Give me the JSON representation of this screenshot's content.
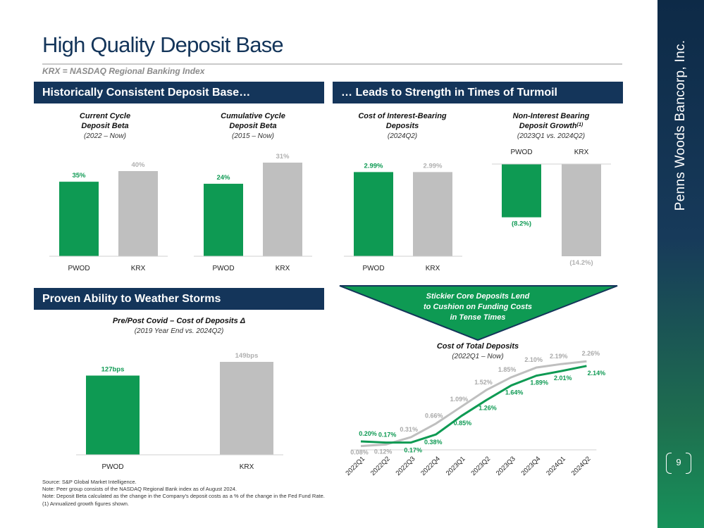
{
  "page": {
    "title": "High Quality Deposit Base",
    "subtitle": "KRX = NASDAQ Regional Banking Index",
    "company": "Penns Woods Bancorp, Inc.",
    "page_number": "9"
  },
  "sections": {
    "left_top": "Historically Consistent Deposit Base…",
    "right_top": "… Leads to Strength in Times of Turmoil",
    "left_bottom": "Proven Ability to Weather Storms"
  },
  "callout": {
    "line1": "Stickier Core Deposits Lend",
    "line2": "to Cushion on Funding Costs",
    "line3": "in Tense Times"
  },
  "notes": [
    "Source: S&P Global Market Intelligence.",
    "Note: Peer group consists of the NASDAQ Regional Bank index as of August 2024.",
    "Note: Deposit Beta calculated as the change in the Company's deposit costs as a % of the change in the Fed Fund Rate.",
    "(1) Annualized growth figures shown."
  ],
  "colors": {
    "pwod": "#0e9a53",
    "krx": "#bfbfbf",
    "navy": "#14355a"
  },
  "chart_data": [
    {
      "type": "bar",
      "title": "Current Cycle",
      "title2": "Deposit Beta",
      "subtitle": "(2022 – Now)",
      "categories": [
        "PWOD",
        "KRX"
      ],
      "values": [
        35,
        40
      ],
      "labels": [
        "35%",
        "40%"
      ],
      "ylim": [
        0,
        40
      ]
    },
    {
      "type": "bar",
      "title": "Cumulative Cycle",
      "title2": "Deposit Beta",
      "subtitle": "(2015 – Now)",
      "categories": [
        "PWOD",
        "KRX"
      ],
      "values": [
        24,
        31
      ],
      "labels": [
        "24%",
        "31%"
      ],
      "ylim": [
        0,
        31
      ]
    },
    {
      "type": "bar",
      "title": "Cost of Interest-Bearing",
      "title2": "Deposits",
      "subtitle": "(2024Q2)",
      "categories": [
        "PWOD",
        "KRX"
      ],
      "values": [
        2.99,
        2.99
      ],
      "labels": [
        "2.99%",
        "2.99%"
      ],
      "ylim": [
        0,
        3.1
      ]
    },
    {
      "type": "bar",
      "title": "Non-Interest Bearing",
      "title2": "Deposit Growth",
      "title2_sup": "(1)",
      "subtitle": "(2023Q1 vs. 2024Q2)",
      "categories": [
        "PWOD",
        "KRX"
      ],
      "values": [
        -8.2,
        -14.2
      ],
      "labels": [
        "(8.2%)",
        "(14.2%)"
      ],
      "ylim": [
        -14.2,
        0
      ]
    },
    {
      "type": "bar",
      "title": "Pre/Post Covid – Cost of Deposits Δ",
      "subtitle": "(2019 Year End vs. 2024Q2)",
      "categories": [
        "PWOD",
        "KRX"
      ],
      "values": [
        127,
        149
      ],
      "labels": [
        "127bps",
        "149bps"
      ],
      "ylim": [
        0,
        149
      ]
    },
    {
      "type": "line",
      "title": "Cost of Total Deposits",
      "subtitle": "(2022Q1 – Now)",
      "x": [
        "2022Q1",
        "2022Q2",
        "2022Q3",
        "2022Q4",
        "2023Q1",
        "2023Q2",
        "2023Q3",
        "2023Q4",
        "2024Q1",
        "2024Q2"
      ],
      "series": [
        {
          "name": "KRX",
          "values": [
            0.08,
            0.12,
            0.31,
            0.66,
            1.09,
            1.52,
            1.85,
            2.1,
            2.19,
            2.26
          ],
          "labels": [
            "0.08%",
            "0.12%",
            "0.31%",
            "0.66%",
            "1.09%",
            "1.52%",
            "1.85%",
            "2.10%",
            "2.19%",
            "2.26%"
          ]
        },
        {
          "name": "PWOD",
          "values": [
            0.2,
            0.17,
            0.17,
            0.38,
            0.85,
            1.26,
            1.64,
            1.89,
            2.01,
            2.14
          ],
          "labels": [
            "0.20%",
            "0.17%",
            "0.17%",
            "0.38%",
            "0.85%",
            "1.26%",
            "1.64%",
            "1.89%",
            "2.01%",
            "2.14%"
          ]
        }
      ],
      "ylim": [
        0,
        2.3
      ]
    }
  ]
}
